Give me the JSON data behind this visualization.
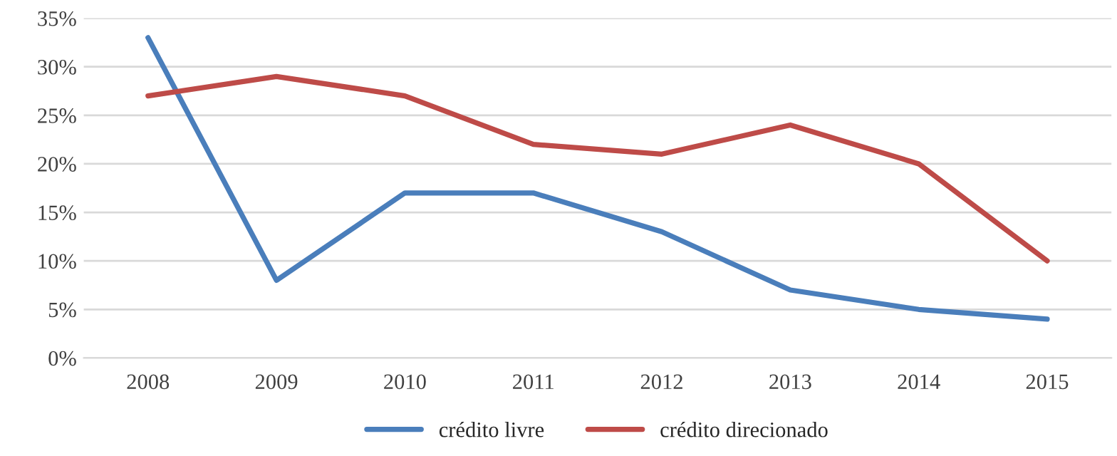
{
  "chart_data": {
    "type": "line",
    "categories": [
      "2008",
      "2009",
      "2010",
      "2011",
      "2012",
      "2013",
      "2014",
      "2015"
    ],
    "series": [
      {
        "name": "crédito livre",
        "color": "#4a7ebb",
        "values": [
          33,
          8,
          17,
          17,
          13,
          7,
          5,
          4
        ]
      },
      {
        "name": "crédito direcionado",
        "color": "#be4b48",
        "values": [
          27,
          29,
          27,
          22,
          21,
          24,
          20,
          10
        ]
      }
    ],
    "ylim": [
      0,
      35
    ],
    "yticks": [
      {
        "value": 0,
        "label": "0%"
      },
      {
        "value": 5,
        "label": "5%"
      },
      {
        "value": 10,
        "label": "10%"
      },
      {
        "value": 15,
        "label": "15%"
      },
      {
        "value": 20,
        "label": "20%"
      },
      {
        "value": 25,
        "label": "25%"
      },
      {
        "value": 30,
        "label": "30%"
      },
      {
        "value": 35,
        "label": "35%"
      }
    ],
    "grid": "y",
    "legend": "bottom",
    "marker": "none",
    "line_style": "solid"
  }
}
